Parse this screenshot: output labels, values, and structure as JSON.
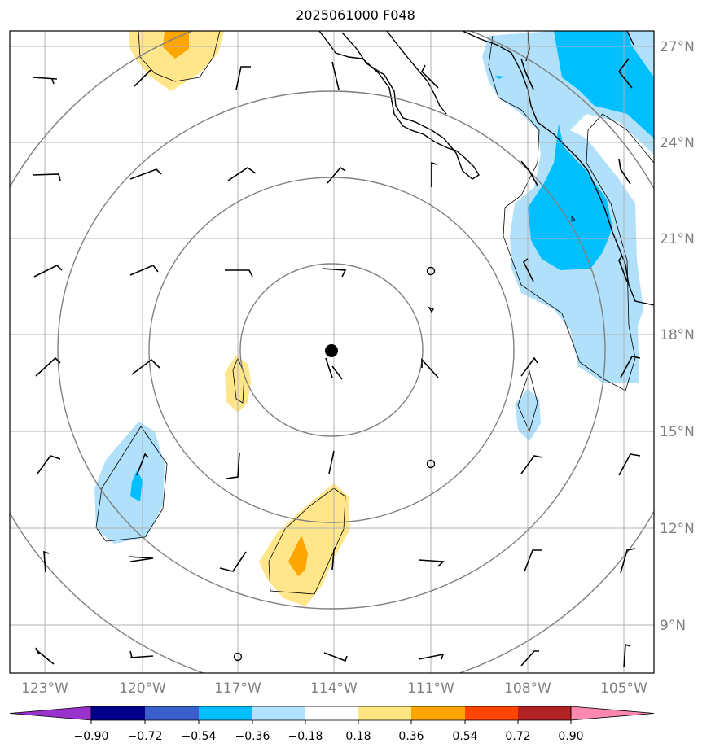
{
  "title": "2025061000 F048",
  "latitude_labels": [
    "27°N",
    "24°N",
    "21°N",
    "18°N",
    "15°N",
    "12°N",
    "9°N"
  ],
  "longitude_labels": [
    "123°W",
    "120°W",
    "117°W",
    "114°W",
    "111°W",
    "108°W",
    "105°W"
  ],
  "colorbar": {
    "tick_labels": [
      "−0.90",
      "−0.72",
      "−0.54",
      "−0.36",
      "−0.18",
      "0.18",
      "0.36",
      "0.54",
      "0.72",
      "0.90"
    ],
    "colors": [
      "#9932cc",
      "#00008b",
      "#3a5fcd",
      "#00bfff",
      "#b0e2ff",
      "#ffffff",
      "#ffe680",
      "#ffa500",
      "#ff4500",
      "#b22222",
      "#ff88b0"
    ]
  },
  "colors": {
    "contour_neg_light": "#b0e0fa",
    "contour_neg_mid": "#00bfff",
    "contour_pos_light": "#ffe68a",
    "contour_pos_mid": "#ffa500",
    "range_rings": "#808080",
    "coastline": "#000000",
    "gridlines": "#b0b0b0"
  }
}
